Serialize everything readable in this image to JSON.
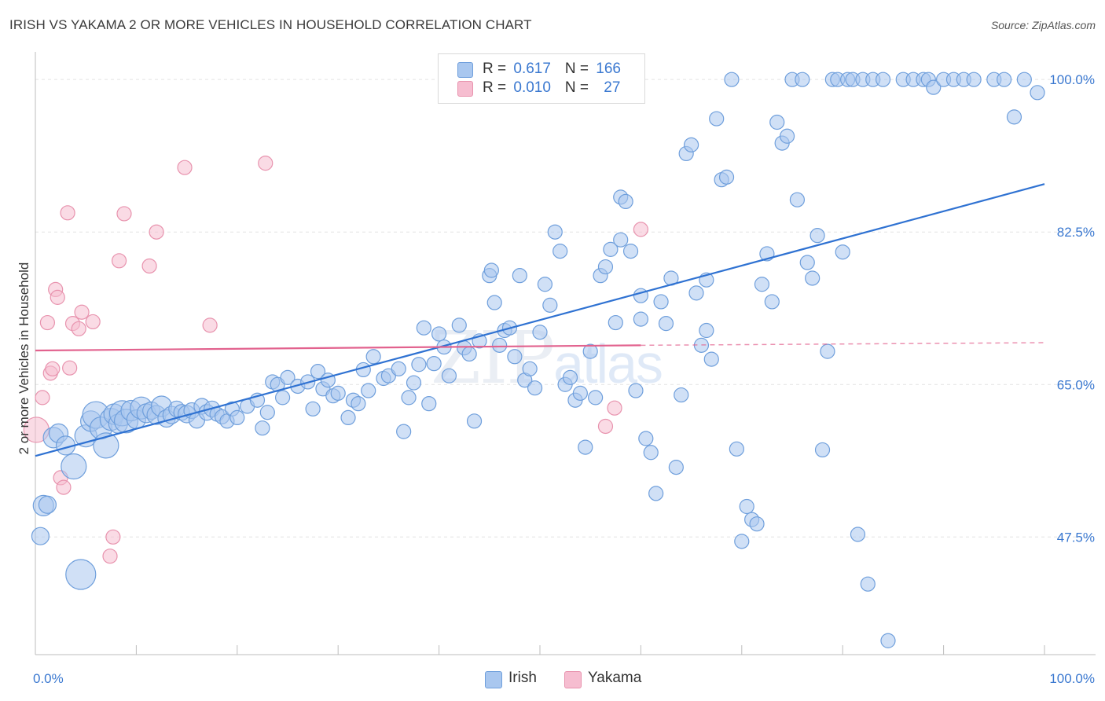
{
  "title": "IRISH VS YAKAMA 2 OR MORE VEHICLES IN HOUSEHOLD CORRELATION CHART",
  "source": "Source: ZipAtlas.com",
  "watermark": {
    "zip": "ZIP",
    "atlas": "atlas"
  },
  "legend": {
    "rows": [
      {
        "r_label": "R = ",
        "r_value": "0.617",
        "n_label": "N = ",
        "n_value": "166"
      },
      {
        "r_label": "R = ",
        "r_value": "0.010",
        "n_label": "N = ",
        "n_value": "27"
      }
    ]
  },
  "bottom_legend": [
    "Irish",
    "Yakama"
  ],
  "colors": {
    "irish_fill": "#a9c7ef",
    "irish_stroke": "#6f9fdc",
    "irish_line": "#2f72d2",
    "yakama_fill": "#f6bdd0",
    "yakama_stroke": "#e893ae",
    "yakama_line": "#e2628e",
    "tick_label": "#3a78d0",
    "grid": "#e3e3e3"
  },
  "chart_data": {
    "type": "scatter",
    "title": "IRISH VS YAKAMA 2 OR MORE VEHICLES IN HOUSEHOLD CORRELATION CHART",
    "xlabel": "",
    "ylabel": "2 or more Vehicles in Household",
    "xlim": [
      0,
      100
    ],
    "ylim": [
      34,
      102
    ],
    "x_tick_labels": [
      "0.0%",
      "100.0%"
    ],
    "y_ticks": [
      47.5,
      65.0,
      82.5,
      100.0
    ],
    "y_tick_labels": [
      "47.5%",
      "65.0%",
      "82.5%",
      "100.0%"
    ],
    "grid": true,
    "series": [
      {
        "name": "Irish",
        "r": 0.617,
        "n": 166,
        "trend": {
          "x": [
            0,
            100
          ],
          "y": [
            56.8,
            88.0
          ],
          "style": "solid"
        },
        "points": [
          [
            0.5,
            47.6,
            11
          ],
          [
            0.8,
            51.1,
            13
          ],
          [
            1.2,
            51.2,
            11
          ],
          [
            1.8,
            58.9,
            13
          ],
          [
            2.3,
            59.4,
            12
          ],
          [
            3,
            58,
            12
          ],
          [
            3.8,
            55.6,
            16
          ],
          [
            4.5,
            43.2,
            19
          ],
          [
            5,
            59.1,
            14
          ],
          [
            5.5,
            60.8,
            13
          ],
          [
            6,
            61.5,
            17
          ],
          [
            6.5,
            60,
            14
          ],
          [
            7,
            58,
            16
          ],
          [
            7.5,
            61,
            14
          ],
          [
            7.8,
            61.6,
            13
          ],
          [
            8.2,
            60.5,
            12
          ],
          [
            8.6,
            61.7,
            16
          ],
          [
            9,
            60.8,
            15
          ],
          [
            9.5,
            62,
            13
          ],
          [
            10,
            61,
            12
          ],
          [
            10.5,
            62.3,
            14
          ],
          [
            11,
            61.7,
            12
          ],
          [
            11.5,
            62,
            11
          ],
          [
            12,
            61.5,
            12
          ],
          [
            12.5,
            62.5,
            13
          ],
          [
            13,
            61.1,
            11
          ],
          [
            13.5,
            61.5,
            11
          ],
          [
            14,
            62.2,
            10
          ],
          [
            14.5,
            61.8,
            10
          ],
          [
            15,
            61.6,
            11
          ],
          [
            15.5,
            62,
            10
          ],
          [
            16,
            60.9,
            10
          ],
          [
            16.5,
            62.5,
            10
          ],
          [
            17,
            61.8,
            10
          ],
          [
            17.5,
            62.2,
            10
          ],
          [
            18,
            61.6,
            9
          ],
          [
            18.5,
            61.3,
            9
          ],
          [
            19,
            60.8,
            9
          ],
          [
            19.5,
            62.2,
            9
          ],
          [
            20,
            61.2,
            9
          ],
          [
            21,
            62.5,
            9
          ],
          [
            22,
            63.2,
            9
          ],
          [
            22.5,
            60,
            9
          ],
          [
            23,
            61.8,
            9
          ],
          [
            23.5,
            65.3,
            9
          ],
          [
            24,
            65,
            9
          ],
          [
            24.5,
            63.5,
            9
          ],
          [
            25,
            65.8,
            9
          ],
          [
            26,
            64.8,
            9
          ],
          [
            27,
            65.3,
            9
          ],
          [
            27.5,
            62.2,
            9
          ],
          [
            28,
            66.5,
            9
          ],
          [
            28.5,
            64.5,
            9
          ],
          [
            29,
            65.5,
            9
          ],
          [
            29.5,
            63.7,
            9
          ],
          [
            30,
            64,
            9
          ],
          [
            31,
            61.2,
            9
          ],
          [
            31.5,
            63.2,
            9
          ],
          [
            32,
            62.8,
            9
          ],
          [
            32.5,
            66.7,
            9
          ],
          [
            33,
            64.3,
            9
          ],
          [
            33.5,
            68.2,
            9
          ],
          [
            34.5,
            65.7,
            9
          ],
          [
            35,
            66,
            9
          ],
          [
            36,
            66.8,
            9
          ],
          [
            36.5,
            59.6,
            9
          ],
          [
            37,
            63.5,
            9
          ],
          [
            37.5,
            65.2,
            9
          ],
          [
            38,
            67.3,
            9
          ],
          [
            38.5,
            71.5,
            9
          ],
          [
            39,
            62.8,
            9
          ],
          [
            39.5,
            67.4,
            9
          ],
          [
            40,
            70.8,
            9
          ],
          [
            40.5,
            69.3,
            9
          ],
          [
            41,
            66,
            9
          ],
          [
            42,
            71.8,
            9
          ],
          [
            42.5,
            69.2,
            9
          ],
          [
            43,
            68.5,
            9
          ],
          [
            43.5,
            60.8,
            9
          ],
          [
            44,
            70,
            9
          ],
          [
            45,
            77.5,
            9
          ],
          [
            45.2,
            78.1,
            9
          ],
          [
            45.5,
            74.4,
            9
          ],
          [
            46,
            69.5,
            9
          ],
          [
            46.5,
            71.2,
            9
          ],
          [
            47,
            71.5,
            9
          ],
          [
            47.5,
            68.2,
            9
          ],
          [
            48,
            77.5,
            9
          ],
          [
            48.5,
            65.5,
            9
          ],
          [
            49,
            66.8,
            9
          ],
          [
            49.5,
            64.6,
            9
          ],
          [
            50,
            71,
            9
          ],
          [
            50.5,
            76.5,
            9
          ],
          [
            51,
            74.1,
            9
          ],
          [
            51.5,
            82.5,
            9
          ],
          [
            52,
            80.3,
            9
          ],
          [
            52.5,
            65,
            9
          ],
          [
            53,
            65.8,
            9
          ],
          [
            53.5,
            63.2,
            9
          ],
          [
            54,
            64,
            9
          ],
          [
            54.5,
            57.8,
            9
          ],
          [
            55,
            68.8,
            9
          ],
          [
            55.5,
            63.5,
            9
          ],
          [
            56,
            77.5,
            9
          ],
          [
            56.5,
            78.5,
            9
          ],
          [
            57,
            80.5,
            9
          ],
          [
            57.5,
            72.1,
            9
          ],
          [
            58,
            86.5,
            9
          ],
          [
            58.5,
            86,
            9
          ],
          [
            59,
            80.3,
            9
          ],
          [
            59.5,
            64.3,
            9
          ],
          [
            60,
            75.2,
            9
          ],
          [
            60.5,
            58.8,
            9
          ],
          [
            61,
            57.2,
            9
          ],
          [
            61.5,
            52.5,
            9
          ],
          [
            62,
            74.5,
            9
          ],
          [
            62.5,
            72,
            9
          ],
          [
            63,
            77.2,
            9
          ],
          [
            63.5,
            55.5,
            9
          ],
          [
            64,
            63.8,
            9
          ],
          [
            64.5,
            91.5,
            9
          ],
          [
            65,
            92.5,
            9
          ],
          [
            65.5,
            75.5,
            9
          ],
          [
            66,
            69.5,
            9
          ],
          [
            66.5,
            71.2,
            9
          ],
          [
            67,
            67.9,
            9
          ],
          [
            67.5,
            95.5,
            9
          ],
          [
            68,
            88.5,
            9
          ],
          [
            68.5,
            88.8,
            9
          ],
          [
            69,
            100,
            9
          ],
          [
            69.5,
            57.6,
            9
          ],
          [
            70,
            47,
            9
          ],
          [
            70.5,
            51,
            9
          ],
          [
            71,
            49.5,
            9
          ],
          [
            71.5,
            49,
            9
          ],
          [
            72,
            76.5,
            9
          ],
          [
            72.5,
            80,
            9
          ],
          [
            73,
            74.5,
            9
          ],
          [
            73.5,
            95.1,
            9
          ],
          [
            74,
            92.7,
            9
          ],
          [
            74.5,
            93.5,
            9
          ],
          [
            75,
            100,
            9
          ],
          [
            75.5,
            86.2,
            9
          ],
          [
            76,
            100,
            9
          ],
          [
            76.5,
            79,
            9
          ],
          [
            77,
            77.2,
            9
          ],
          [
            77.5,
            82.1,
            9
          ],
          [
            78,
            57.5,
            9
          ],
          [
            78.5,
            68.8,
            9
          ],
          [
            79,
            100,
            9
          ],
          [
            79.5,
            100,
            9
          ],
          [
            80,
            80.2,
            9
          ],
          [
            80.5,
            100,
            9
          ],
          [
            81,
            100,
            9
          ],
          [
            81.5,
            47.8,
            9
          ],
          [
            82,
            100,
            9
          ],
          [
            82.5,
            42.1,
            9
          ],
          [
            83,
            100,
            9
          ],
          [
            84,
            100,
            9
          ],
          [
            84.5,
            35.6,
            9
          ],
          [
            86,
            100,
            9
          ],
          [
            87,
            100,
            9
          ],
          [
            88,
            100,
            9
          ],
          [
            88.5,
            100,
            9
          ],
          [
            89,
            99.1,
            9
          ],
          [
            90,
            100,
            9
          ],
          [
            91,
            100,
            9
          ],
          [
            92,
            100,
            9
          ],
          [
            93,
            100,
            9
          ],
          [
            95,
            100,
            9
          ],
          [
            96,
            100,
            9
          ],
          [
            99.3,
            98.5,
            9
          ],
          [
            98,
            100,
            9
          ],
          [
            97,
            95.7,
            9
          ],
          [
            58,
            81.6,
            9
          ],
          [
            60,
            72.5,
            9
          ],
          [
            66.5,
            77,
            9
          ]
        ]
      },
      {
        "name": "Yakama",
        "r": 0.01,
        "n": 27,
        "trend": {
          "x": [
            0,
            60,
            100
          ],
          "y": [
            68.9,
            69.5,
            69.8
          ],
          "solid_until": 60,
          "style": "solid-then-dashed"
        },
        "points": [
          [
            0.1,
            59.8,
            16
          ],
          [
            0.7,
            63.5,
            9
          ],
          [
            1.2,
            72.1,
            9
          ],
          [
            1.5,
            66.3,
            9
          ],
          [
            1.7,
            66.8,
            9
          ],
          [
            2,
            75.9,
            9
          ],
          [
            2.2,
            75,
            9
          ],
          [
            2.5,
            54.3,
            9
          ],
          [
            2.8,
            53.2,
            9
          ],
          [
            3.2,
            84.7,
            9
          ],
          [
            3.4,
            66.9,
            9
          ],
          [
            3.7,
            72,
            9
          ],
          [
            4.3,
            71.4,
            9
          ],
          [
            4.6,
            73.3,
            9
          ],
          [
            5.7,
            72.2,
            9
          ],
          [
            7.4,
            45.3,
            9
          ],
          [
            7.7,
            47.5,
            9
          ],
          [
            8.3,
            79.2,
            9
          ],
          [
            8.8,
            84.6,
            9
          ],
          [
            11.3,
            78.6,
            9
          ],
          [
            12,
            82.5,
            9
          ],
          [
            14.8,
            89.9,
            9
          ],
          [
            17.3,
            71.8,
            9
          ],
          [
            22.8,
            90.4,
            9
          ],
          [
            56.5,
            60.2,
            9
          ],
          [
            57.4,
            62.3,
            9
          ],
          [
            60,
            82.8,
            9
          ]
        ]
      }
    ]
  }
}
